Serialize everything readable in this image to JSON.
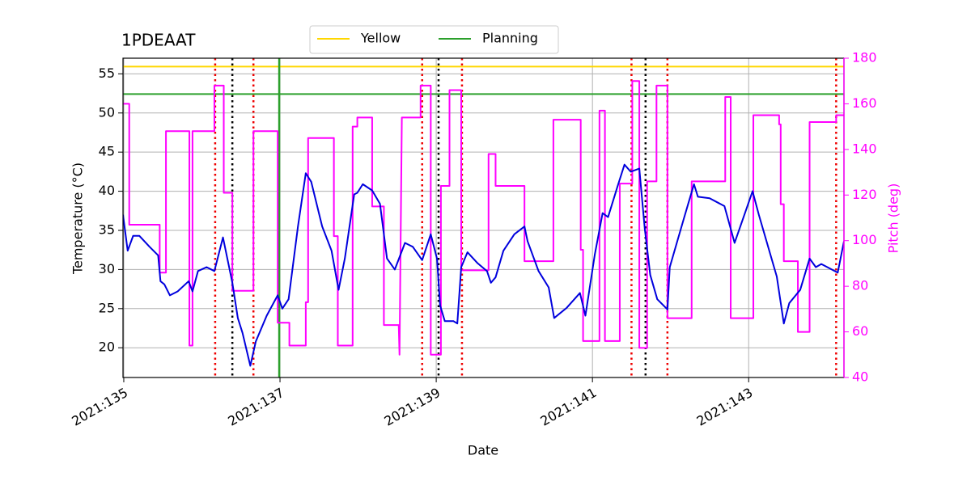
{
  "chart_data": {
    "type": "line",
    "title": "1PDEAAT",
    "xlabel": "Date",
    "ylabel": "Temperature (°C)",
    "y2label": "Pitch (deg)",
    "y2color": "#ff00ff",
    "xlim": [
      134.99,
      144.22
    ],
    "xticks": [
      {
        "value": 135,
        "label": "2021:135"
      },
      {
        "value": 137,
        "label": "2021:137"
      },
      {
        "value": 139,
        "label": "2021:139"
      },
      {
        "value": 141,
        "label": "2021:141"
      },
      {
        "value": 143,
        "label": "2021:143"
      }
    ],
    "ylim": [
      16.2,
      57.0
    ],
    "yticks": [
      20,
      25,
      30,
      35,
      40,
      45,
      50,
      55
    ],
    "y2lim": [
      40,
      180
    ],
    "y2ticks": [
      40,
      60,
      80,
      100,
      120,
      140,
      160,
      180
    ],
    "grid": true,
    "legend": "upper center",
    "hlines": [
      {
        "name": "Yellow",
        "color": "#ffd700",
        "value": 55.93
      },
      {
        "name": "Planning",
        "color": "#2ca02c",
        "value": 52.42
      }
    ],
    "vlines": [
      {
        "value": 136.17,
        "color": "#ee0000",
        "style": "dotted"
      },
      {
        "value": 136.66,
        "color": "#ee0000",
        "style": "dotted"
      },
      {
        "value": 138.82,
        "color": "#ee0000",
        "style": "dotted"
      },
      {
        "value": 139.33,
        "color": "#ee0000",
        "style": "dotted"
      },
      {
        "value": 141.5,
        "color": "#ee0000",
        "style": "dotted"
      },
      {
        "value": 141.96,
        "color": "#ee0000",
        "style": "dotted"
      },
      {
        "value": 144.12,
        "color": "#ee0000",
        "style": "dotted"
      },
      {
        "value": 136.39,
        "color": "#000000",
        "style": "dotted"
      },
      {
        "value": 139.03,
        "color": "#000000",
        "style": "dotted"
      },
      {
        "value": 141.68,
        "color": "#000000",
        "style": "dotted"
      },
      {
        "value": 136.99,
        "color": "#2ca02c",
        "style": "solid"
      }
    ],
    "series": [
      {
        "color": "#ff00ff",
        "axis": "y2",
        "x": [
          134.99,
          135.07,
          135.07,
          135.46,
          135.46,
          135.54,
          135.54,
          135.84,
          135.84,
          135.88,
          135.88,
          136.16,
          136.16,
          136.28,
          136.28,
          136.39,
          136.39,
          136.66,
          136.66,
          136.97,
          136.97,
          137.12,
          137.12,
          137.33,
          137.33,
          137.36,
          137.36,
          137.69,
          137.69,
          137.74,
          137.74,
          137.93,
          137.93,
          137.99,
          137.99,
          138.18,
          138.18,
          138.33,
          138.33,
          138.52,
          138.53,
          138.56,
          138.8,
          138.8,
          138.93,
          138.93,
          139.06,
          139.06,
          139.17,
          139.17,
          139.32,
          139.32,
          139.67,
          139.67,
          139.76,
          139.76,
          140.13,
          140.13,
          140.5,
          140.5,
          140.85,
          140.85,
          140.88,
          140.88,
          141.09,
          141.09,
          141.16,
          141.16,
          141.35,
          141.35,
          141.51,
          141.51,
          141.6,
          141.6,
          141.7,
          141.7,
          141.82,
          141.82,
          141.96,
          141.96,
          142.27,
          142.27,
          142.7,
          142.7,
          142.77,
          142.77,
          143.06,
          143.06,
          143.39,
          143.39,
          143.41,
          143.41,
          143.45,
          143.45,
          143.63,
          143.63,
          143.78,
          143.78,
          144.12,
          144.12,
          144.22
        ],
        "values": [
          160,
          160,
          107,
          107,
          86,
          86,
          148,
          148,
          54,
          54,
          148,
          148,
          168,
          168,
          121,
          121,
          78,
          78,
          148,
          148,
          64,
          64,
          54,
          54,
          73,
          73,
          145,
          145,
          102,
          102,
          54,
          54,
          150,
          150,
          154,
          154,
          115,
          115,
          63,
          63,
          50,
          154,
          154,
          168,
          168,
          50,
          50,
          124,
          124,
          166,
          166,
          87,
          87,
          138,
          138,
          124,
          124,
          91,
          91,
          153,
          153,
          96,
          96,
          56,
          56,
          157,
          157,
          56,
          56,
          125,
          125,
          170,
          170,
          53,
          53,
          126,
          126,
          168,
          168,
          66,
          66,
          126,
          126,
          163,
          163,
          66,
          66,
          155,
          155,
          151,
          151,
          116,
          116,
          91,
          91,
          60,
          60,
          152,
          152,
          155,
          155
        ]
      },
      {
        "color": "#0000dd",
        "x": [
          134.99,
          135.05,
          135.12,
          135.2,
          135.33,
          135.44,
          135.47,
          135.52,
          135.59,
          135.69,
          135.83,
          135.88,
          135.95,
          136.06,
          136.16,
          136.27,
          136.39,
          136.46,
          136.52,
          136.62,
          136.69,
          136.83,
          136.97,
          137.03,
          137.11,
          137.23,
          137.33,
          137.4,
          137.54,
          137.66,
          137.75,
          137.83,
          137.95,
          137.99,
          138.06,
          138.18,
          138.28,
          138.37,
          138.47,
          138.6,
          138.7,
          138.82,
          138.93,
          139.01,
          139.05,
          139.11,
          139.22,
          139.27,
          139.32,
          139.4,
          139.53,
          139.65,
          139.7,
          139.76,
          139.86,
          140.0,
          140.13,
          140.17,
          140.31,
          140.44,
          140.51,
          140.67,
          140.84,
          140.91,
          141.03,
          141.13,
          141.2,
          141.33,
          141.41,
          141.49,
          141.6,
          141.67,
          141.74,
          141.83,
          141.96,
          141.99,
          142.17,
          142.3,
          142.35,
          142.5,
          142.69,
          142.82,
          143.05,
          143.13,
          143.36,
          143.45,
          143.52,
          143.66,
          143.78,
          143.86,
          143.93,
          144.14,
          144.22
        ],
        "values": [
          37.0,
          32.4,
          34.3,
          34.3,
          32.9,
          31.8,
          28.5,
          28.1,
          26.7,
          27.2,
          28.5,
          27.2,
          29.8,
          30.3,
          29.8,
          34.1,
          28.3,
          23.8,
          21.9,
          17.7,
          20.8,
          24.1,
          26.7,
          25.0,
          26.2,
          35.5,
          42.3,
          41.2,
          35.5,
          32.4,
          27.4,
          31.4,
          39.6,
          39.8,
          40.9,
          40.1,
          38.4,
          31.4,
          30.0,
          33.4,
          32.9,
          31.2,
          34.5,
          31.4,
          25.4,
          23.4,
          23.4,
          23.1,
          30.3,
          32.2,
          30.8,
          29.8,
          28.3,
          29.0,
          32.4,
          34.5,
          35.5,
          33.6,
          29.8,
          27.7,
          23.8,
          25.1,
          27.0,
          24.1,
          31.9,
          37.2,
          36.7,
          40.9,
          43.4,
          42.5,
          42.9,
          35.2,
          29.3,
          26.2,
          24.9,
          30.3,
          36.5,
          40.9,
          39.3,
          39.1,
          38.1,
          33.4,
          40.0,
          37.0,
          29.1,
          23.1,
          25.7,
          27.4,
          31.4,
          30.3,
          30.7,
          29.6,
          33.6
        ]
      }
    ]
  }
}
